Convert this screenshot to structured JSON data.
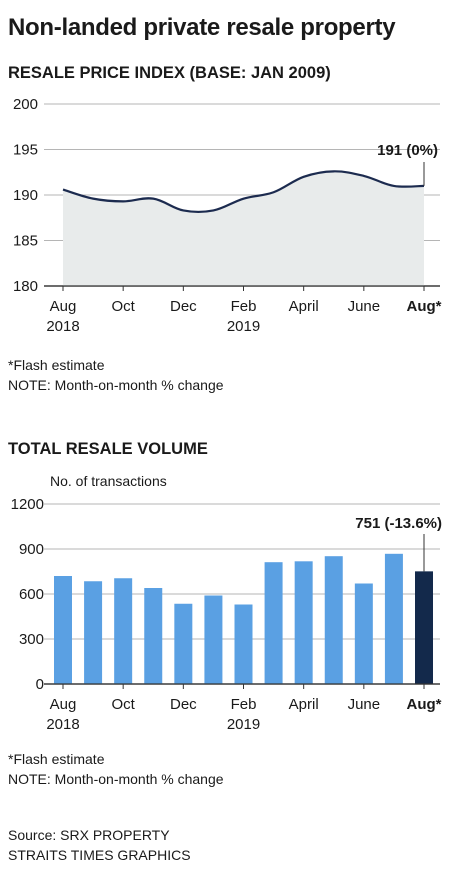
{
  "title": "Non-landed private resale property",
  "price_index": {
    "section_title": "RESALE PRICE INDEX (BASE: JAN 2009)",
    "notes": [
      "*Flash estimate",
      "NOTE: Month-on-month % change"
    ]
  },
  "volume": {
    "section_title": "TOTAL RESALE VOLUME",
    "notes": [
      "*Flash estimate",
      "NOTE: Month-on-month % change"
    ]
  },
  "source": [
    "Source: SRX PROPERTY",
    "STRAITS TIMES GRAPHICS"
  ],
  "colors": {
    "line": "#1c2b4f",
    "area_fill": "#e8ebeb",
    "bar": "#5aa0e3",
    "bar_highlight": "#13294b",
    "axis": "#333333",
    "grid": "#b5b5b5"
  },
  "chart_data": [
    {
      "type": "area",
      "title": "RESALE PRICE INDEX (BASE: JAN 2009)",
      "x": [
        "Aug 2018",
        "Sep 2018",
        "Oct 2018",
        "Nov 2018",
        "Dec 2018",
        "Jan 2019",
        "Feb 2019",
        "Mar 2019",
        "Apr 2019",
        "May 2019",
        "Jun 2019",
        "Jul 2019",
        "Aug 2019"
      ],
      "values": [
        190.6,
        189.6,
        189.3,
        189.6,
        188.3,
        188.3,
        189.6,
        190.3,
        192.0,
        192.6,
        192.1,
        191.0,
        191.0
      ],
      "ylim": [
        180,
        200
      ],
      "yticks": [
        "200",
        "195",
        "190",
        "185",
        "180"
      ],
      "xtick_labels": [
        {
          "index": 0,
          "line1": "Aug",
          "line2": "2018",
          "bold": false
        },
        {
          "index": 2,
          "line1": "Oct",
          "line2": "",
          "bold": false
        },
        {
          "index": 4,
          "line1": "Dec",
          "line2": "",
          "bold": false
        },
        {
          "index": 6,
          "line1": "Feb",
          "line2": "2019",
          "bold": false
        },
        {
          "index": 8,
          "line1": "April",
          "line2": "",
          "bold": false
        },
        {
          "index": 10,
          "line1": "June",
          "line2": "",
          "bold": false
        },
        {
          "index": 12,
          "line1": "Aug*",
          "line2": "",
          "bold": true
        }
      ],
      "annotation": {
        "index": 12,
        "text": "191 (0%)"
      },
      "grid": true
    },
    {
      "type": "bar",
      "title": "TOTAL RESALE VOLUME",
      "ylabel": "No. of transactions",
      "x": [
        "Aug 2018",
        "Sep 2018",
        "Oct 2018",
        "Nov 2018",
        "Dec 2018",
        "Jan 2019",
        "Feb 2019",
        "Mar 2019",
        "Apr 2019",
        "May 2019",
        "Jun 2019",
        "Jul 2019",
        "Aug 2019"
      ],
      "values": [
        720,
        685,
        705,
        640,
        535,
        590,
        530,
        812,
        818,
        852,
        670,
        868,
        751
      ],
      "highlight_index": 12,
      "ylim": [
        0,
        1200
      ],
      "yticks": [
        "1200",
        "900",
        "600",
        "300",
        "0"
      ],
      "xtick_labels": [
        {
          "index": 0,
          "line1": "Aug",
          "line2": "2018",
          "bold": false
        },
        {
          "index": 2,
          "line1": "Oct",
          "line2": "",
          "bold": false
        },
        {
          "index": 4,
          "line1": "Dec",
          "line2": "",
          "bold": false
        },
        {
          "index": 6,
          "line1": "Feb",
          "line2": "2019",
          "bold": false
        },
        {
          "index": 8,
          "line1": "April",
          "line2": "",
          "bold": false
        },
        {
          "index": 10,
          "line1": "June",
          "line2": "",
          "bold": false
        },
        {
          "index": 12,
          "line1": "Aug*",
          "line2": "",
          "bold": true
        }
      ],
      "annotation": {
        "index": 12,
        "text": "751 (-13.6%)"
      },
      "grid": true
    }
  ]
}
